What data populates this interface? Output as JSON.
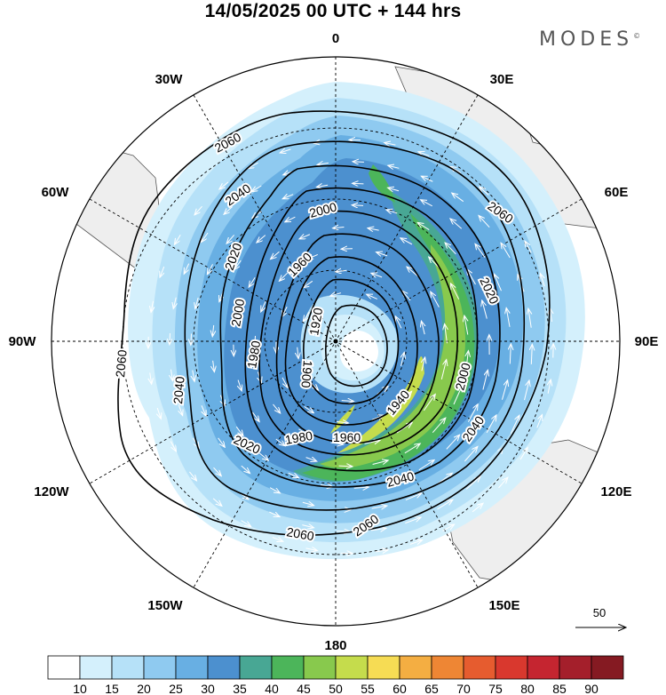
{
  "header": {
    "title": "14/05/2025  00 UTC  + 144 hrs",
    "brand": "MODES",
    "brand_mark": "©"
  },
  "map": {
    "projection": "polar stereographic (south pole)",
    "longitude_labels": [
      "0",
      "30E",
      "60E",
      "90E",
      "120E",
      "150E",
      "180",
      "150W",
      "120W",
      "90W",
      "60W",
      "30W"
    ],
    "contour_labels": [
      "1900",
      "1920",
      "1940",
      "1960",
      "1980",
      "2000",
      "2020",
      "2040",
      "2060"
    ],
    "contour_values": [
      1900,
      1920,
      1940,
      1960,
      1980,
      2000,
      2020,
      2040,
      2060
    ],
    "shading": "wind speed",
    "wind_vectors": "anticlockwise circulation around pole",
    "land_color": "#eeeeee"
  },
  "reference_vector": {
    "label": "50"
  },
  "colorbar": {
    "ticks": [
      "10",
      "15",
      "20",
      "25",
      "30",
      "35",
      "40",
      "45",
      "50",
      "55",
      "60",
      "65",
      "70",
      "75",
      "80",
      "85",
      "90"
    ],
    "colors": [
      "#ffffff",
      "#d4f0fc",
      "#b6e1f8",
      "#8fcaf0",
      "#68afe3",
      "#4c90cf",
      "#48a794",
      "#4cb55a",
      "#88c94d",
      "#c5dc4c",
      "#f6dc54",
      "#f4ae42",
      "#ee8634",
      "#e65c2f",
      "#d9382e",
      "#c52530",
      "#a41f2b",
      "#851a22"
    ]
  }
}
